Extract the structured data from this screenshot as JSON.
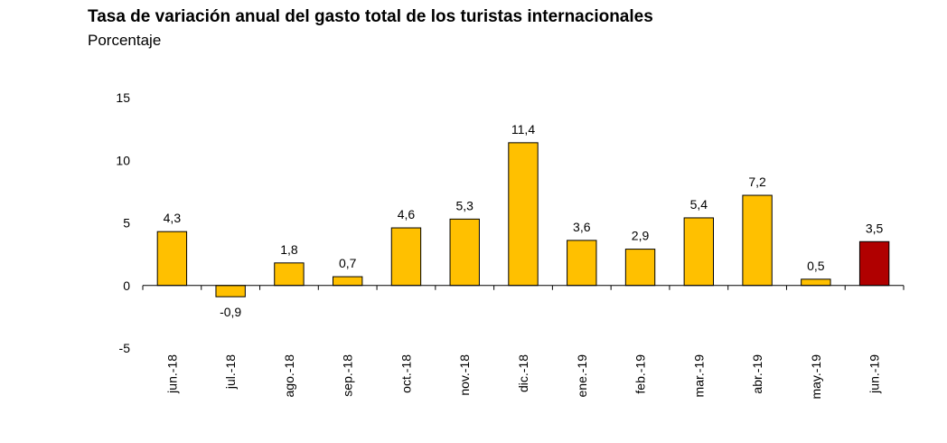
{
  "chart_data": {
    "type": "bar",
    "title": "Tasa de variación anual del gasto total de los turistas internacionales",
    "subtitle": "Porcentaje",
    "categories": [
      "jun.-18",
      "jul.-18",
      "ago.-18",
      "sep.-18",
      "oct.-18",
      "nov.-18",
      "dic.-18",
      "ene.-19",
      "feb.-19",
      "mar.-19",
      "abr.-19",
      "may.-19",
      "jun.-19"
    ],
    "values": [
      4.3,
      -0.9,
      1.8,
      0.7,
      4.6,
      5.3,
      11.4,
      3.6,
      2.9,
      5.4,
      7.2,
      0.5,
      3.5
    ],
    "data_labels": [
      "4,3",
      "-0,9",
      "1,8",
      "0,7",
      "4,6",
      "5,3",
      "11,4",
      "3,6",
      "2,9",
      "5,4",
      "7,2",
      "0,5",
      "3,5"
    ],
    "y_ticks": [
      15,
      10,
      5,
      0,
      -5
    ],
    "y_tick_labels": [
      "15",
      "10",
      "5",
      "0",
      "-5"
    ],
    "ylim": [
      -5,
      15
    ],
    "grid": false,
    "colors": {
      "bar": "#FFC000",
      "highlight": "#B00000",
      "outline": "#000000"
    },
    "highlight_index": 12
  }
}
